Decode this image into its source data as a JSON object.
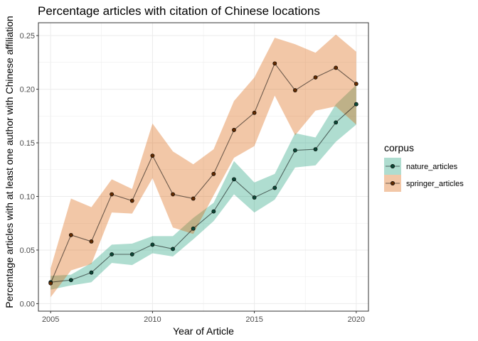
{
  "chart_data": {
    "type": "line",
    "title": "Percentage articles with citation of Chinese locations",
    "xlabel": "Year of Article",
    "ylabel": "Percentage articles with at least one author with Chinese affiliation",
    "xlim": [
      2004.4,
      2020.6
    ],
    "ylim": [
      -0.007,
      0.262
    ],
    "x_ticks": [
      2005,
      2010,
      2015,
      2020
    ],
    "y_ticks": [
      0.0,
      0.05,
      0.1,
      0.15,
      0.2,
      0.25
    ],
    "y_tick_labels": [
      "0.00",
      "0.05",
      "0.10",
      "0.15",
      "0.20",
      "0.25"
    ],
    "grid": true,
    "legend": {
      "title": "corpus",
      "placement": "right"
    },
    "x": [
      2005,
      2006,
      2007,
      2008,
      2009,
      2010,
      2011,
      2012,
      2013,
      2014,
      2015,
      2016,
      2017,
      2018,
      2019,
      2020
    ],
    "series": [
      {
        "name": "nature_articles",
        "color": "#1b9e77",
        "values": [
          0.02,
          0.022,
          0.029,
          0.046,
          0.046,
          0.055,
          0.051,
          0.07,
          0.086,
          0.116,
          0.099,
          0.108,
          0.143,
          0.144,
          0.169,
          0.186
        ],
        "lower": [
          0.013,
          0.017,
          0.02,
          0.038,
          0.036,
          0.047,
          0.044,
          0.06,
          0.077,
          0.102,
          0.085,
          0.097,
          0.127,
          0.129,
          0.151,
          0.167
        ],
        "upper": [
          0.026,
          0.027,
          0.038,
          0.055,
          0.056,
          0.063,
          0.063,
          0.08,
          0.094,
          0.133,
          0.113,
          0.121,
          0.159,
          0.155,
          0.186,
          0.204
        ]
      },
      {
        "name": "springer_articles",
        "color": "#d95f02",
        "values": [
          0.019,
          0.064,
          0.058,
          0.102,
          0.096,
          0.138,
          0.102,
          0.098,
          0.121,
          0.162,
          0.178,
          0.224,
          0.199,
          0.211,
          0.22,
          0.205
        ],
        "lower": [
          0.006,
          0.031,
          0.037,
          0.085,
          0.084,
          0.117,
          0.071,
          0.065,
          0.101,
          0.136,
          0.147,
          0.194,
          0.157,
          0.18,
          0.184,
          0.167
        ],
        "upper": [
          0.033,
          0.098,
          0.09,
          0.116,
          0.107,
          0.168,
          0.142,
          0.13,
          0.144,
          0.189,
          0.211,
          0.248,
          0.242,
          0.234,
          0.251,
          0.235
        ]
      }
    ]
  }
}
